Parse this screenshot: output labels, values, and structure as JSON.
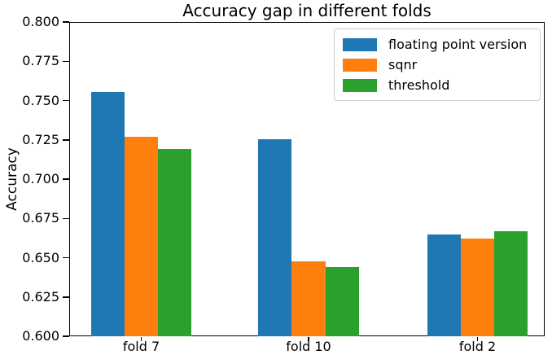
{
  "chart_data": {
    "type": "bar",
    "title": "Accuracy gap in different folds",
    "xlabel": "",
    "ylabel": "Accuracy",
    "categories": [
      "fold 7",
      "fold 10",
      "fold 2"
    ],
    "series": [
      {
        "name": "floating point version",
        "color": "#1f77b4",
        "values": [
          0.7555,
          0.7255,
          0.665
        ]
      },
      {
        "name": "sqnr",
        "color": "#ff7f0e",
        "values": [
          0.727,
          0.6475,
          0.662
        ]
      },
      {
        "name": "threshold",
        "color": "#2ca02c",
        "values": [
          0.719,
          0.644,
          0.667
        ]
      }
    ],
    "ylim": [
      0.6,
      0.8
    ],
    "yticks": [
      0.8,
      0.775,
      0.75,
      0.725,
      0.7,
      0.675,
      0.65,
      0.625,
      0.6
    ],
    "ytick_format_decimals": 3,
    "grid": false,
    "legend_position": "upper right",
    "background_color": "#ffffff",
    "axis_color": "#000000"
  }
}
